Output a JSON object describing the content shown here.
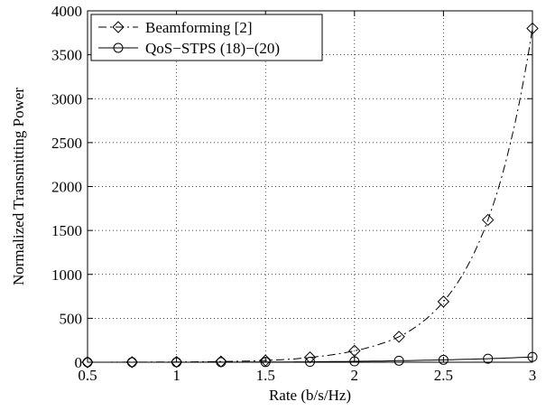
{
  "chart_data": {
    "type": "line",
    "title": "",
    "xlabel": "Rate (b/s/Hz)",
    "ylabel": "Normalized Transmitting Power",
    "xlim": [
      0.5,
      3
    ],
    "ylim": [
      0,
      4000
    ],
    "xticks": [
      0.5,
      1,
      1.5,
      2,
      2.5,
      3
    ],
    "xtick_labels": [
      "0.5",
      "1",
      "1.5",
      "2",
      "2.5",
      "3"
    ],
    "yticks": [
      0,
      500,
      1000,
      1500,
      2000,
      2500,
      3000,
      3500,
      4000
    ],
    "ytick_labels": [
      "0",
      "500",
      "1000",
      "1500",
      "2000",
      "2500",
      "3000",
      "3500",
      "4000"
    ],
    "grid": true,
    "legend_position": "top-left",
    "x": [
      0.5,
      0.75,
      1,
      1.25,
      1.5,
      1.75,
      2,
      2.25,
      2.5,
      2.75,
      3
    ],
    "series": [
      {
        "name": "Beamforming [2]",
        "marker": "diamond",
        "line_style": "dash-dot",
        "values": [
          0,
          1,
          3,
          8,
          20,
          55,
          130,
          290,
          690,
          1620,
          3800
        ]
      },
      {
        "name": "QoS−STPS (18)−(20)",
        "marker": "circle",
        "line_style": "solid",
        "values": [
          0,
          0,
          0,
          1,
          2,
          5,
          10,
          17,
          27,
          40,
          60
        ]
      }
    ]
  }
}
